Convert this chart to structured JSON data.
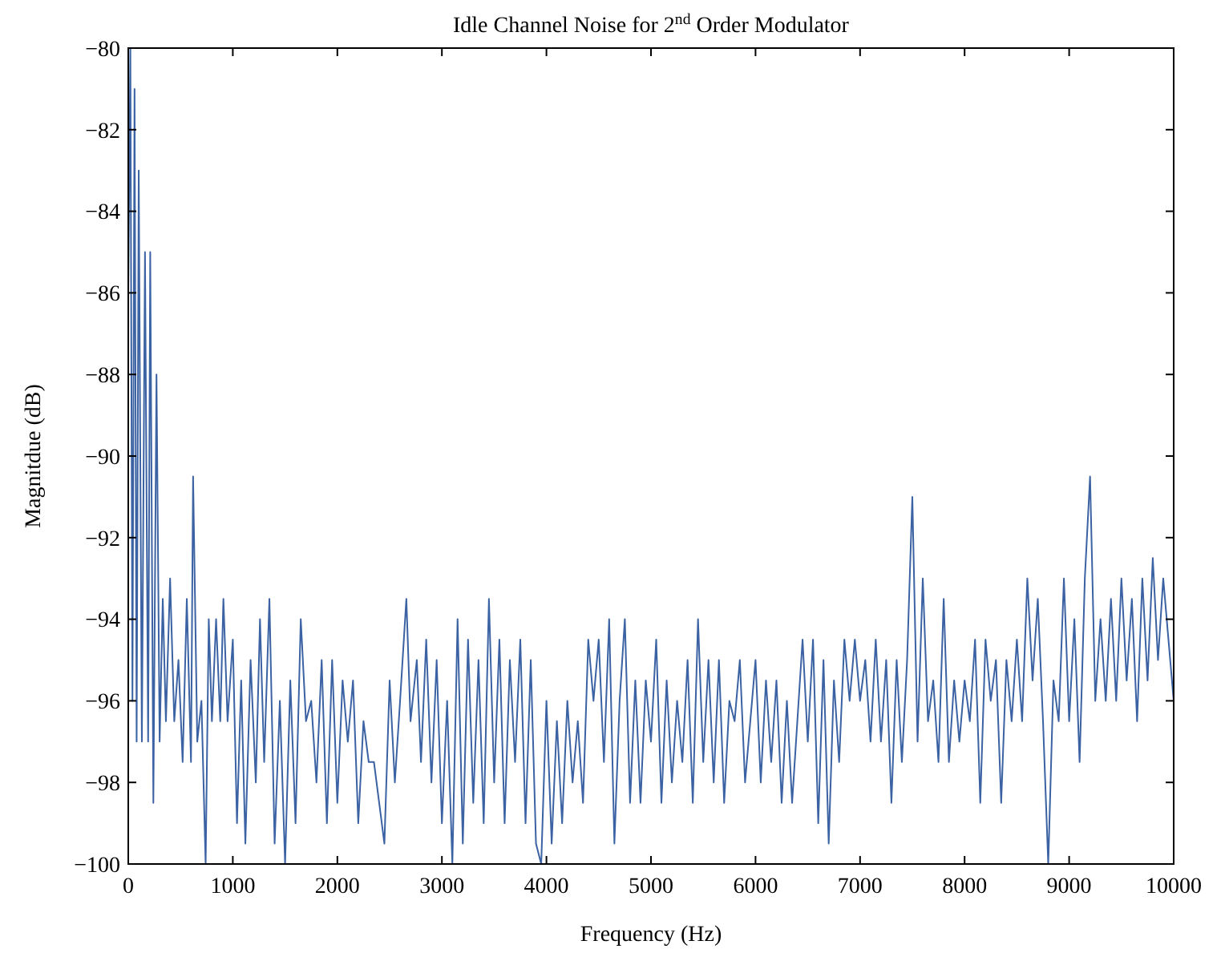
{
  "chart_data": {
    "type": "line",
    "title": "Idle Channel Noise for 2$^{nd}$ Order Modulator",
    "xlabel": "Frequency (Hz)",
    "ylabel": "Magnitdue (dB)",
    "xlim": [
      0,
      10000
    ],
    "xticks": [
      0,
      1000,
      2000,
      3000,
      4000,
      5000,
      6000,
      7000,
      8000,
      9000,
      10000
    ],
    "ylim": [
      -100,
      -80
    ],
    "yticks": [
      -100,
      -98,
      -96,
      -94,
      -92,
      -90,
      -88,
      -86,
      -84,
      -82,
      -80
    ],
    "grid": false,
    "marker": "none",
    "line_style": "solid",
    "series": [
      {
        "color": "#3b62a3",
        "x": [
          0,
          20,
          40,
          60,
          80,
          100,
          130,
          160,
          190,
          210,
          240,
          270,
          300,
          330,
          360,
          400,
          440,
          480,
          520,
          560,
          600,
          620,
          660,
          700,
          740,
          770,
          800,
          840,
          880,
          910,
          950,
          1000,
          1040,
          1080,
          1120,
          1170,
          1220,
          1260,
          1300,
          1350,
          1400,
          1450,
          1500,
          1550,
          1600,
          1650,
          1700,
          1750,
          1800,
          1850,
          1900,
          1950,
          2000,
          2050,
          2100,
          2150,
          2200,
          2250,
          2300,
          2350,
          2400,
          2450,
          2500,
          2550,
          2600,
          2660,
          2700,
          2760,
          2800,
          2850,
          2900,
          2950,
          3000,
          3050,
          3100,
          3150,
          3200,
          3250,
          3300,
          3350,
          3400,
          3450,
          3500,
          3550,
          3600,
          3650,
          3700,
          3750,
          3800,
          3850,
          3900,
          3950,
          4000,
          4050,
          4100,
          4150,
          4200,
          4250,
          4300,
          4350,
          4400,
          4450,
          4500,
          4550,
          4600,
          4650,
          4700,
          4750,
          4800,
          4850,
          4900,
          4950,
          5000,
          5050,
          5100,
          5150,
          5200,
          5250,
          5300,
          5350,
          5400,
          5450,
          5500,
          5550,
          5600,
          5650,
          5700,
          5750,
          5800,
          5850,
          5900,
          5950,
          6000,
          6050,
          6100,
          6150,
          6200,
          6250,
          6300,
          6350,
          6400,
          6450,
          6500,
          6550,
          6600,
          6650,
          6700,
          6750,
          6800,
          6850,
          6900,
          6950,
          7000,
          7050,
          7100,
          7150,
          7200,
          7250,
          7300,
          7350,
          7400,
          7450,
          7500,
          7550,
          7600,
          7650,
          7700,
          7750,
          7800,
          7850,
          7900,
          7950,
          8000,
          8050,
          8100,
          8150,
          8200,
          8250,
          8300,
          8350,
          8400,
          8450,
          8500,
          8550,
          8600,
          8650,
          8700,
          8750,
          8800,
          8850,
          8900,
          8950,
          9000,
          9050,
          9100,
          9150,
          9200,
          9250,
          9300,
          9350,
          9400,
          9450,
          9500,
          9550,
          9600,
          9650,
          9700,
          9750,
          9800,
          9850,
          9900,
          9950,
          10000
        ],
        "values": [
          -86,
          -80,
          -96,
          -81,
          -97,
          -83,
          -97,
          -85,
          -97,
          -85,
          -98.5,
          -88,
          -97,
          -93.5,
          -96.5,
          -93,
          -96.5,
          -95,
          -97.5,
          -93.5,
          -97.5,
          -90.5,
          -97,
          -96,
          -100,
          -94,
          -96.5,
          -94,
          -96.5,
          -93.5,
          -96.5,
          -94.5,
          -99,
          -95.5,
          -99.5,
          -95,
          -98,
          -94,
          -97.5,
          -93.5,
          -99.5,
          -96,
          -100,
          -95.5,
          -99,
          -94,
          -96.5,
          -96,
          -98,
          -95,
          -99,
          -95,
          -98.5,
          -95.5,
          -97,
          -95.5,
          -99,
          -96.5,
          -97.5,
          -97.5,
          -98.5,
          -99.5,
          -95.5,
          -98,
          -96,
          -93.5,
          -96.5,
          -95,
          -97.5,
          -94.5,
          -98,
          -95,
          -99,
          -96,
          -100,
          -94,
          -99.5,
          -94.5,
          -98.5,
          -95,
          -99,
          -93.5,
          -98,
          -94.5,
          -99,
          -95,
          -97.5,
          -94.5,
          -99,
          -95,
          -99.5,
          -100,
          -96,
          -99.5,
          -96.5,
          -99,
          -96,
          -98,
          -96.5,
          -98.5,
          -94.5,
          -96,
          -94.5,
          -97.5,
          -94,
          -99.5,
          -96,
          -94,
          -98.5,
          -95.5,
          -98.5,
          -95.5,
          -97,
          -94.5,
          -98.5,
          -95.5,
          -98,
          -96,
          -97.5,
          -95,
          -98.5,
          -94,
          -97.5,
          -95,
          -98,
          -95,
          -98.5,
          -96,
          -96.5,
          -95,
          -98,
          -96.5,
          -95,
          -98,
          -95.5,
          -97.5,
          -95.5,
          -98.5,
          -96,
          -98.5,
          -96.5,
          -94.5,
          -97,
          -94.5,
          -99,
          -95,
          -99.5,
          -95.5,
          -97.5,
          -94.5,
          -96,
          -94.5,
          -96,
          -95,
          -97,
          -94.5,
          -97,
          -95,
          -98.5,
          -95,
          -97.5,
          -95,
          -91,
          -97,
          -93,
          -96.5,
          -95.5,
          -97.5,
          -93.5,
          -97.5,
          -95.5,
          -97,
          -95.5,
          -96.5,
          -94.5,
          -98.5,
          -94.5,
          -96,
          -95,
          -98.5,
          -95,
          -96.5,
          -94.5,
          -96.5,
          -93,
          -95.5,
          -93.5,
          -96.5,
          -100,
          -95.5,
          -96.5,
          -93,
          -96.5,
          -94,
          -97.5,
          -93,
          -90.5,
          -96,
          -94,
          -96,
          -93.5,
          -96,
          -93,
          -95.5,
          -93.5,
          -96.5,
          -93,
          -95.5,
          -92.5,
          -95,
          -93,
          -94.5,
          -96
        ]
      }
    ]
  }
}
